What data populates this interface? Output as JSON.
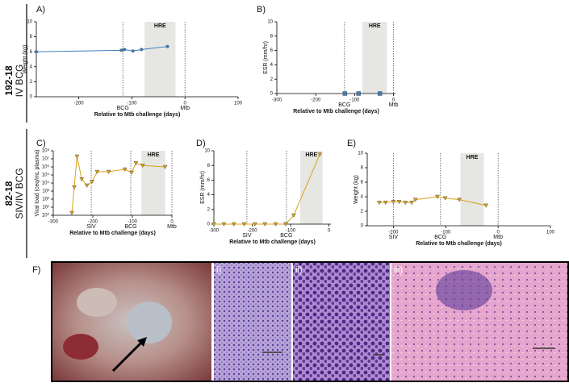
{
  "row_labels": [
    {
      "id": "192-18",
      "group": "IV BCG"
    },
    {
      "id": "82-18",
      "group": "SIV/IV BCG"
    }
  ],
  "chart_data": [
    {
      "type": "line",
      "panel": "A)",
      "ylabel": "Weight (kg)",
      "xlabel": "Relative to Mtb challenge (days)",
      "x": [
        -280,
        -120,
        -114,
        -98,
        -82,
        -33
      ],
      "values": [
        6.0,
        6.2,
        6.3,
        6.1,
        6.3,
        6.7
      ],
      "color": "#3a7ebf",
      "marker": "circle",
      "xlim": [
        -280,
        100
      ],
      "xticks": [
        -200,
        -100,
        0,
        100
      ],
      "ylim": [
        0,
        10
      ],
      "yticks": [
        0,
        2,
        4,
        6,
        8,
        10
      ],
      "annotations": [
        {
          "text": "BCG",
          "x": -117
        },
        {
          "text": "Mtb",
          "x": 0
        }
      ],
      "shaded": {
        "label": "HRE",
        "x": [
          -76,
          -18
        ]
      }
    },
    {
      "type": "scatter",
      "panel": "B)",
      "ylabel": "ESR (mm/hr)",
      "xlabel": "Relative to Mtb challenge (days)",
      "x": [
        -125,
        -90,
        -35
      ],
      "values": [
        0,
        0,
        0
      ],
      "color": "#3a7ebf",
      "marker": "square",
      "xlim": [
        -300,
        5
      ],
      "xticks": [
        -300,
        -200,
        -100,
        0
      ],
      "ylim": [
        0,
        10
      ],
      "yticks": [
        0,
        2,
        4,
        6,
        8,
        10
      ],
      "annotations": [
        {
          "text": "BCG",
          "x": -126
        },
        {
          "text": "Mtb",
          "x": 0
        }
      ],
      "shaded": {
        "label": "HRE",
        "x": [
          -80,
          -17
        ]
      }
    },
    {
      "type": "line",
      "panel": "C)",
      "ylabel": "Viral load (ceq/mL plasma)",
      "xlabel": "Relative to Mtb challenge (days)",
      "x": [
        -253,
        -247,
        -240,
        -228,
        -215,
        -202,
        -189,
        -160,
        -119,
        -102,
        -91,
        -74,
        -17
      ],
      "values": [
        2,
        3000,
        20000000,
        30000,
        5000,
        15000,
        250000,
        250000,
        500000,
        200000,
        3000000,
        1500000,
        1000000
      ],
      "color": "#d9a21b",
      "marker": "triangle",
      "log_y": true,
      "xlim": [
        -300,
        0
      ],
      "xticks": [
        -300,
        -200,
        -100,
        0
      ],
      "ylim": [
        1,
        100000000
      ],
      "yticks": [
        {
          "value": 1,
          "label": "10⁰"
        },
        {
          "value": 10,
          "label": "10¹"
        },
        {
          "value": 100,
          "label": "10²"
        },
        {
          "value": 1000,
          "label": "10³"
        },
        {
          "value": 10000,
          "label": "10⁴"
        },
        {
          "value": 100000,
          "label": "10⁵"
        },
        {
          "value": 1000000,
          "label": "10⁶"
        },
        {
          "value": 10000000,
          "label": "10⁷"
        },
        {
          "value": 100000000,
          "label": "10⁸"
        }
      ],
      "annotations": [
        {
          "text": "SIV",
          "x": -204
        },
        {
          "text": "BCG",
          "x": -104
        },
        {
          "text": "Mtb",
          "x": 0
        }
      ],
      "shaded": {
        "label": "HRE",
        "x": [
          -77,
          -17
        ]
      }
    },
    {
      "type": "line",
      "panel": "D)",
      "ylabel": "ESR (mm/hr)",
      "xlabel": "Relative to Mtb challenge (days)",
      "x": [
        -300,
        -274,
        -248,
        -221,
        -193,
        -167,
        -139,
        -113,
        -92,
        -24
      ],
      "values": [
        0,
        0,
        0,
        0,
        0,
        0,
        0,
        0,
        1.2,
        9.5
      ],
      "color": "#d9a21b",
      "marker": "triangle",
      "xlim": [
        -300,
        5
      ],
      "xticks": [
        -300,
        -200,
        -100,
        0
      ],
      "ylim": [
        0,
        10
      ],
      "yticks": [
        0,
        2,
        4,
        6,
        8,
        10
      ],
      "annotations": [
        {
          "text": "SIV",
          "x": -214
        },
        {
          "text": "BCG",
          "x": -111
        }
      ],
      "shaded": {
        "label": "HRE",
        "x": [
          -75,
          -17
        ]
      }
    },
    {
      "type": "line",
      "panel": "E)",
      "ylabel": "Weight (kg)",
      "xlabel": "Relative to Mtb challenge (days)",
      "x": [
        -227,
        -215,
        -200,
        -189,
        -177,
        -165,
        -158,
        -116,
        -101,
        -74,
        -23
      ],
      "values": [
        3.2,
        3.2,
        3.3,
        3.3,
        3.2,
        3.2,
        3.6,
        4.0,
        3.8,
        3.6,
        2.8
      ],
      "color": "#d9a21b",
      "marker": "triangle",
      "xlim": [
        -250,
        100
      ],
      "xticks": [
        -200,
        -100,
        0,
        100
      ],
      "ylim": [
        0,
        10
      ],
      "yticks": [
        0,
        2,
        4,
        6,
        8,
        10
      ],
      "annotations": [
        {
          "text": "SIV",
          "x": -200
        },
        {
          "text": "BCG",
          "x": -110
        },
        {
          "text": "Mtb",
          "x": 0
        }
      ],
      "shaded": {
        "label": "HRE",
        "x": [
          -72,
          -27
        ]
      }
    }
  ],
  "panel_f": {
    "label": "F)",
    "images": [
      {
        "label": "i)"
      },
      {
        "label": "ii)"
      },
      {
        "label": "iii)"
      }
    ]
  }
}
